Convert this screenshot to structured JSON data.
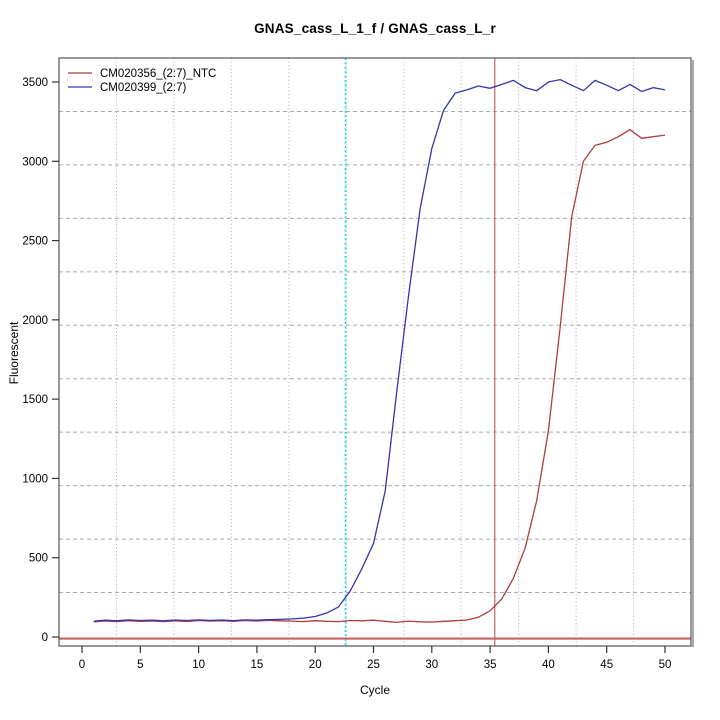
{
  "title": "GNAS_cass_L_1_f / GNAS_cass_L_r",
  "chart_data": {
    "type": "line",
    "title": "GNAS_cass_L_1_f / GNAS_cass_L_r",
    "xlabel": "Cycle",
    "ylabel": "Fluorescent",
    "xlim": [
      -2,
      52.2
    ],
    "ylim": [
      -57,
      3651
    ],
    "x_ticks": [
      0,
      5,
      10,
      15,
      20,
      25,
      30,
      35,
      40,
      45,
      50
    ],
    "y_ticks": [
      0,
      500,
      1000,
      1500,
      2000,
      2500,
      3000,
      3500
    ],
    "grid": {
      "style": "11x11 cells, gray dashed horizontal / dotted vertical",
      "color": "#ababab"
    },
    "legend_position": "top-left-inside",
    "series": [
      {
        "name": "CM020356_(2:7)_NTC",
        "color": "#ae3c3c",
        "x": [
          1,
          2,
          3,
          4,
          5,
          6,
          7,
          8,
          9,
          10,
          11,
          12,
          13,
          14,
          15,
          16,
          17,
          18,
          19,
          20,
          21,
          22,
          23,
          24,
          25,
          26,
          27,
          28,
          29,
          30,
          31,
          32,
          33,
          34,
          35,
          36,
          37,
          38,
          39,
          40,
          41,
          42,
          43,
          44,
          45,
          46,
          47,
          48,
          49,
          50
        ],
        "values": [
          95,
          101,
          97,
          103,
          99,
          101,
          97,
          102,
          98,
          104,
          100,
          103,
          99,
          104,
          101,
          105,
          102,
          100,
          97,
          103,
          99,
          97,
          104,
          102,
          106,
          99,
          92,
          100,
          96,
          94,
          99,
          103,
          107,
          125,
          165,
          240,
          370,
          560,
          860,
          1300,
          1950,
          2650,
          3000,
          3100,
          3120,
          3155,
          3200,
          3145,
          3155,
          3165
        ]
      },
      {
        "name": "CM020399_(2:7)",
        "color": "#3434ae",
        "x": [
          1,
          2,
          3,
          4,
          5,
          6,
          7,
          8,
          9,
          10,
          11,
          12,
          13,
          14,
          15,
          16,
          17,
          18,
          19,
          20,
          21,
          22,
          23,
          24,
          25,
          26,
          27,
          28,
          29,
          30,
          31,
          32,
          33,
          34,
          35,
          36,
          37,
          38,
          39,
          40,
          41,
          42,
          43,
          44,
          45,
          46,
          47,
          48,
          49,
          50
        ],
        "values": [
          100,
          106,
          102,
          108,
          104,
          106,
          102,
          107,
          104,
          108,
          105,
          107,
          103,
          108,
          106,
          109,
          111,
          114,
          119,
          129,
          152,
          190,
          290,
          430,
          590,
          920,
          1550,
          2150,
          2700,
          3080,
          3320,
          3430,
          3450,
          3475,
          3460,
          3485,
          3510,
          3465,
          3445,
          3500,
          3515,
          3480,
          3445,
          3510,
          3480,
          3445,
          3485,
          3440,
          3465,
          3450
        ]
      }
    ],
    "threshold_lines": [
      {
        "orientation": "vertical",
        "value": 22.6,
        "color": "#00dfe4",
        "style": "dotted",
        "width": 1.6
      },
      {
        "orientation": "vertical",
        "value": 35.4,
        "color": "#c46262",
        "style": "solid",
        "width": 1.2
      },
      {
        "orientation": "horizontal",
        "value": -10,
        "color": "#c46262",
        "style": "solid",
        "width": 2.2
      }
    ],
    "axis_color": "#555555",
    "box_shadow_color": "#a9a9a9"
  }
}
